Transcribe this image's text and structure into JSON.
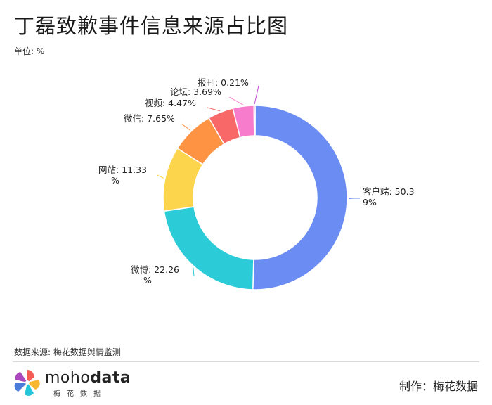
{
  "title": "丁磊致歉事件信息来源占比图",
  "unit_label": "单位: %",
  "source_text": "数据来源: 梅花数据舆情监测",
  "maker_text": "制作：梅花数据",
  "brand": {
    "name_light": "moho",
    "name_bold": "data",
    "sub": "梅花数据"
  },
  "chart_data": {
    "type": "pie",
    "donut": true,
    "title": "丁磊致歉事件信息来源占比图",
    "unit": "%",
    "slices": [
      {
        "label": "客户端",
        "value": 50.39,
        "color": "#6b8cf2",
        "text": [
          "客户端: 50.3",
          "9%"
        ]
      },
      {
        "label": "微博",
        "value": 22.26,
        "color": "#2ccbd8",
        "text": [
          "微博: 22.26",
          "%"
        ]
      },
      {
        "label": "网站",
        "value": 11.33,
        "color": "#fdd54c",
        "text": [
          "网站: 11.33",
          "%"
        ]
      },
      {
        "label": "微信",
        "value": 7.65,
        "color": "#fd9343",
        "text": [
          "微信: 7.65%"
        ]
      },
      {
        "label": "视频",
        "value": 4.47,
        "color": "#f86868",
        "text": [
          "视频: 4.47%"
        ]
      },
      {
        "label": "论坛",
        "value": 3.69,
        "color": "#f77ccb",
        "text": [
          "论坛: 3.69%"
        ]
      },
      {
        "label": "报刊",
        "value": 0.21,
        "color": "#c64dd6",
        "text": [
          "报刊: 0.21%"
        ]
      }
    ]
  }
}
